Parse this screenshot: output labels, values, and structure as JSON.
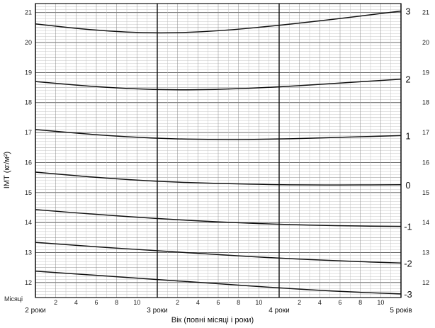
{
  "chart_data": {
    "type": "line",
    "xlabel": "Вік (повні місяці і роки)",
    "ylabel": "ІМТ (кг/м²)",
    "month_axis_label": "Місяці",
    "xlim": [
      24,
      60
    ],
    "ylim": [
      11.5,
      21.3
    ],
    "x_month_ticks": [
      "2",
      "4",
      "6",
      "8",
      "10"
    ],
    "x_year_labels": [
      {
        "x": 24,
        "label": "2 роки"
      },
      {
        "x": 36,
        "label": "3 роки"
      },
      {
        "x": 48,
        "label": "4 роки"
      },
      {
        "x": 60,
        "label": "5 років"
      }
    ],
    "y_ticks": [
      12,
      13,
      14,
      15,
      16,
      17,
      18,
      19,
      20,
      21
    ],
    "grid": true,
    "series": [
      {
        "name": "3",
        "x": [
          24,
          30,
          36,
          42,
          48,
          54,
          60
        ],
        "values": [
          20.62,
          20.4,
          20.3,
          20.38,
          20.57,
          20.8,
          21.05
        ]
      },
      {
        "name": "2",
        "x": [
          24,
          30,
          36,
          42,
          48,
          54,
          60
        ],
        "values": [
          18.7,
          18.52,
          18.42,
          18.43,
          18.52,
          18.65,
          18.78
        ]
      },
      {
        "name": "1",
        "x": [
          24,
          30,
          36,
          42,
          48,
          54,
          60
        ],
        "values": [
          17.1,
          16.92,
          16.8,
          16.76,
          16.78,
          16.84,
          16.9
        ]
      },
      {
        "name": "0",
        "x": [
          24,
          30,
          36,
          42,
          48,
          54,
          60
        ],
        "values": [
          15.68,
          15.5,
          15.37,
          15.3,
          15.26,
          15.25,
          15.26
        ]
      },
      {
        "name": "-1",
        "x": [
          24,
          30,
          36,
          42,
          48,
          54,
          60
        ],
        "values": [
          14.43,
          14.27,
          14.13,
          14.02,
          13.94,
          13.89,
          13.87
        ]
      },
      {
        "name": "-2",
        "x": [
          24,
          30,
          36,
          42,
          48,
          54,
          60
        ],
        "values": [
          13.34,
          13.19,
          13.06,
          12.93,
          12.81,
          12.72,
          12.65
        ]
      },
      {
        "name": "-3",
        "x": [
          24,
          30,
          36,
          42,
          48,
          54,
          60
        ],
        "values": [
          12.38,
          12.24,
          12.1,
          11.96,
          11.82,
          11.7,
          11.62
        ]
      }
    ]
  }
}
